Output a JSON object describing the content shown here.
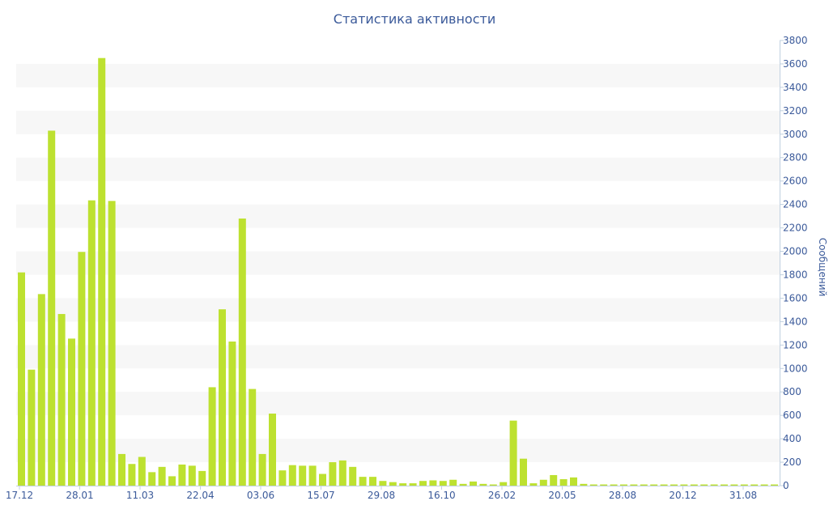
{
  "chart_data": {
    "type": "bar",
    "title": "Статистика активности",
    "ylabel": "Сообщений",
    "ylim": [
      0,
      3800
    ],
    "yticks": [
      0,
      200,
      400,
      600,
      800,
      1000,
      1200,
      1400,
      1600,
      1800,
      2000,
      2200,
      2400,
      2600,
      2800,
      3000,
      3200,
      3400,
      3600,
      3800
    ],
    "xtick_labels": [
      "17.12",
      "28.01",
      "11.03",
      "22.04",
      "03.06",
      "15.07",
      "29.08",
      "16.10",
      "26.02",
      "20.05",
      "28.08",
      "20.12",
      "31.08"
    ],
    "y_axis_side": "right",
    "grid": "horizontal alternating bands",
    "bar_color": "#bde130",
    "band_color": "#f7f7f7",
    "text_color": "#3b5a9a",
    "values": [
      1820,
      990,
      1635,
      3030,
      1465,
      1255,
      1995,
      2435,
      3650,
      2430,
      270,
      185,
      245,
      115,
      160,
      80,
      180,
      170,
      125,
      840,
      1505,
      1230,
      2280,
      825,
      270,
      615,
      130,
      175,
      170,
      170,
      100,
      200,
      215,
      160,
      75,
      75,
      40,
      30,
      20,
      20,
      40,
      45,
      40,
      50,
      15,
      35,
      15,
      10,
      30,
      555,
      230,
      20,
      50,
      90,
      55,
      70,
      15,
      10,
      10,
      10,
      10,
      10,
      10,
      10,
      10,
      10,
      10,
      10,
      10,
      10,
      10,
      10,
      10,
      10,
      10,
      10
    ]
  }
}
